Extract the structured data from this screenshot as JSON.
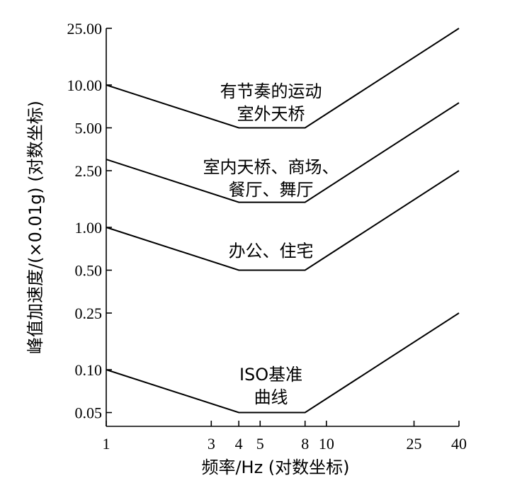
{
  "chart_data": {
    "type": "line",
    "xscale": "log",
    "yscale": "log",
    "xlim": [
      1,
      40
    ],
    "ylim": [
      0.04,
      25
    ],
    "x_ticks": [
      1,
      3,
      4,
      5,
      8,
      10,
      25,
      40
    ],
    "x_tick_labels": [
      "1",
      "3",
      "4",
      "5",
      "8",
      "10",
      "25",
      "40"
    ],
    "y_ticks": [
      0.05,
      0.1,
      0.25,
      0.5,
      1,
      2.5,
      5,
      10,
      25
    ],
    "y_tick_labels": [
      "0.05",
      "0.10",
      "0.25",
      "0.50",
      "1.00",
      "2.50",
      "5.00",
      "10.00",
      "25.00"
    ],
    "xlabel": "频率/Hz (对数坐标)",
    "ylabel": "峰值加速度/(×0.01g) (对数坐标)",
    "grid": false,
    "series": [
      {
        "name": "有节奏的运动 室外天桥",
        "label_lines": [
          "有节奏的运动",
          "室外天桥"
        ],
        "label_at": [
          5.6,
          7.5
        ],
        "points": [
          [
            1,
            10
          ],
          [
            4,
            5
          ],
          [
            8,
            5
          ],
          [
            40,
            25
          ]
        ]
      },
      {
        "name": "室内天桥、商场、餐厅、舞厅",
        "label_lines": [
          "室内天桥、商场、",
          "餐厅、舞厅"
        ],
        "label_at": [
          5.6,
          2.2
        ],
        "points": [
          [
            1,
            3
          ],
          [
            4,
            1.5
          ],
          [
            8,
            1.5
          ],
          [
            40,
            7.5
          ]
        ]
      },
      {
        "name": "办公、住宅",
        "label_lines": [
          "办公、住宅"
        ],
        "label_at": [
          5.6,
          0.68
        ],
        "points": [
          [
            1,
            1
          ],
          [
            4,
            0.5
          ],
          [
            8,
            0.5
          ],
          [
            40,
            2.5
          ]
        ]
      },
      {
        "name": "ISO基准曲线",
        "label_lines": [
          "ISO基准",
          "曲线"
        ],
        "label_at": [
          5.6,
          0.077
        ],
        "points": [
          [
            1,
            0.1
          ],
          [
            4,
            0.05
          ],
          [
            8,
            0.05
          ],
          [
            40,
            0.25
          ]
        ]
      }
    ]
  }
}
